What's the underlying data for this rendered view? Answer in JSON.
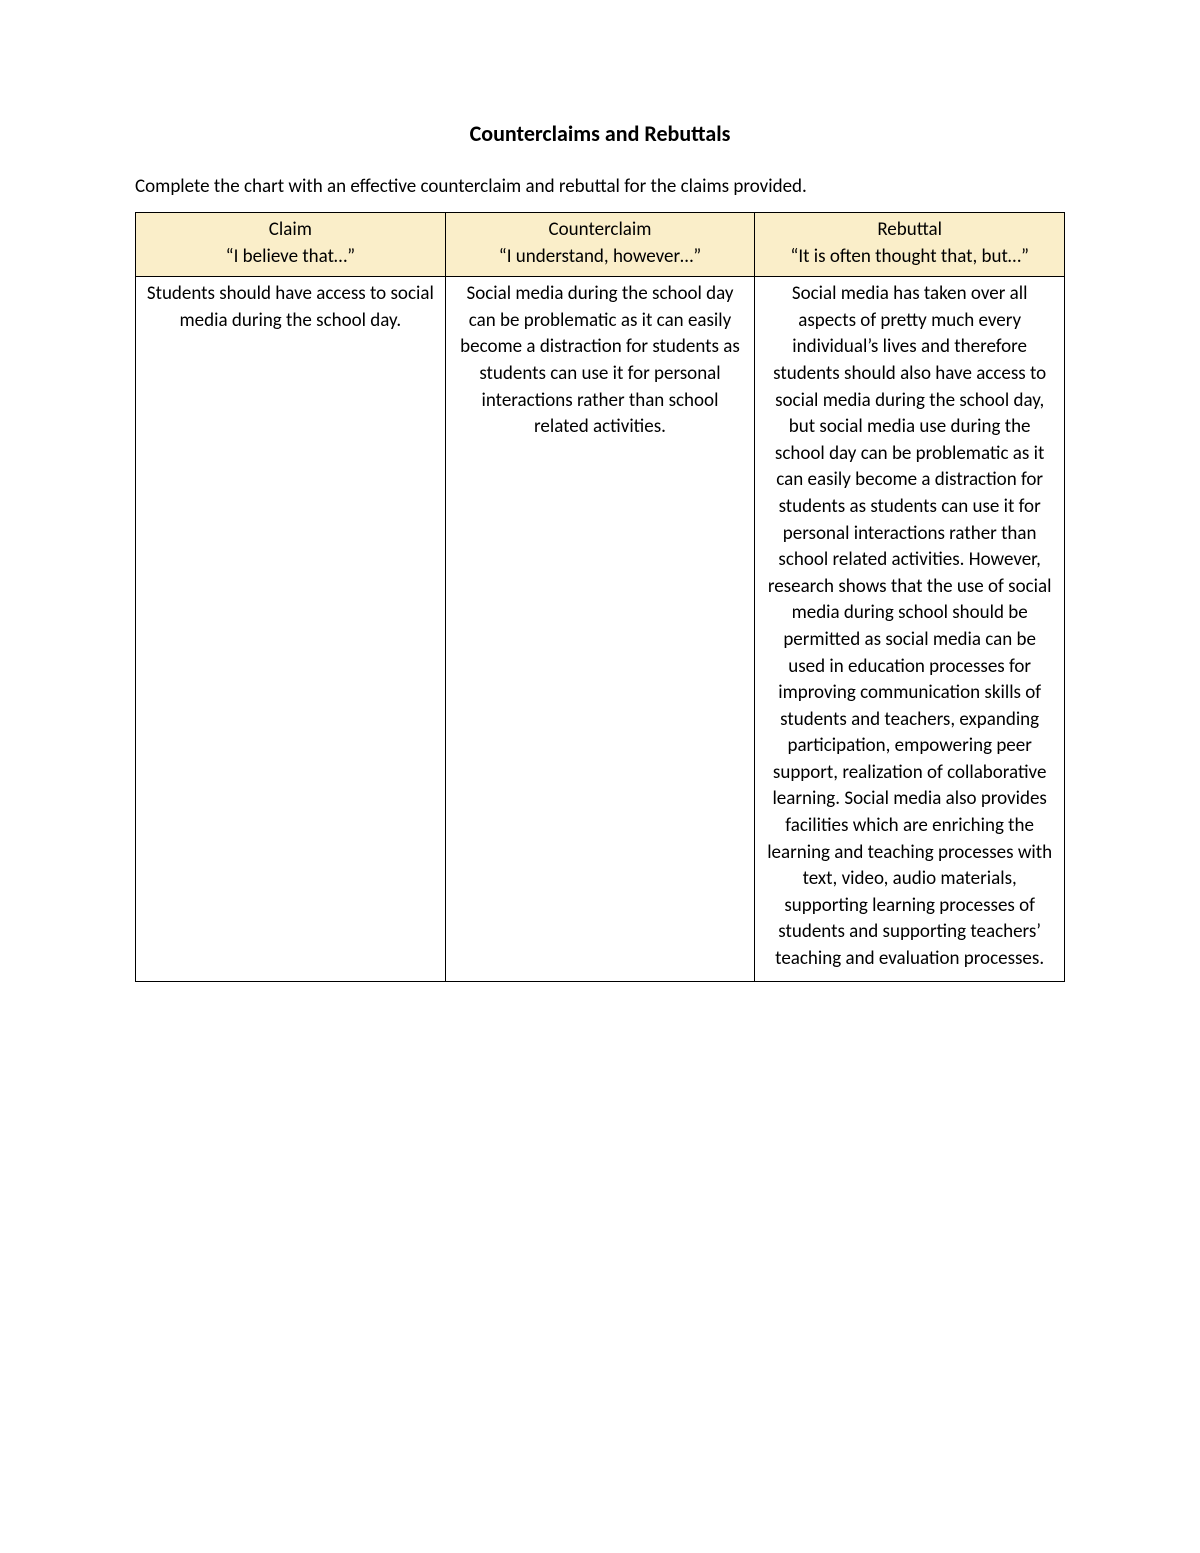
{
  "title": "Counterclaims and Rebuttals",
  "instruction": "Complete the chart with an effective counterclaim and rebuttal for the claims provided.",
  "table": {
    "header_bg": "#faeec9",
    "border_color": "#000000",
    "columns": [
      {
        "title": "Claim",
        "subtitle": "“I believe that…”"
      },
      {
        "title": "Counterclaim",
        "subtitle": "“I understand, however…”"
      },
      {
        "title": "Rebuttal",
        "subtitle": "“It is often thought that, but…”"
      }
    ],
    "rows": [
      {
        "claim": "Students should have access to social media during the school day.",
        "counterclaim": "Social media during the school day can be problematic as it can easily become a distraction for students as students can use it for personal interactions rather than school related activities.",
        "rebuttal": "Social media has taken over all aspects of pretty much every individual’s lives and therefore students should also have access to social media during the school day, but social media use during the school day can be problematic as it can easily become a distraction for students as students can use it for personal interactions rather than school related activities. However, research shows that the use of social media during school should be permitted as social media can be used in education processes for improving communication skills of students and teachers, expanding participation, empowering peer support, realization of collaborative learning. Social media also provides facilities which are enriching the learning and teaching processes with text, video, audio materials, supporting learning processes of students and supporting teachers’ teaching and evaluation processes."
      }
    ]
  },
  "typography": {
    "title_fontsize": 22,
    "body_fontsize": 19,
    "font_family": "Calibri"
  },
  "colors": {
    "background": "#ffffff",
    "text": "#000000"
  }
}
